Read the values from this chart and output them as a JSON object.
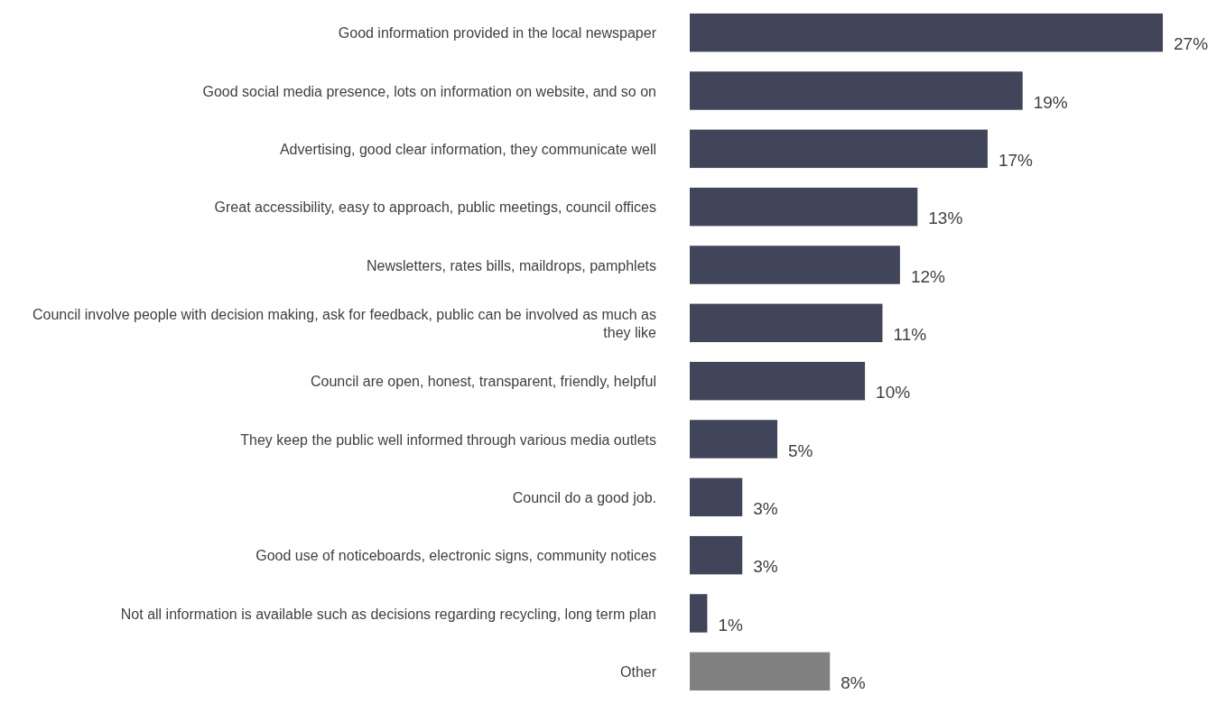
{
  "chart_data": {
    "type": "bar",
    "orientation": "horizontal",
    "relative": false,
    "categories": [
      "Good information provided in the local newspaper",
      "Good social media presence, lots on information on website, and so on",
      "Advertising, good clear information, they communicate well",
      "Great accessibility, easy to approach, public meetings, council offices",
      "Newsletters, rates bills, maildrops, pamphlets",
      "Council involve people with decision making, ask for feedback, public can be involved as much as they like",
      "Council are open, honest, transparent, friendly, helpful",
      "They keep the public well informed through various media outlets",
      "Council do a good job.",
      "Good use of noticeboards, electronic signs, community notices",
      "Not all information is available such as decisions regarding recycling, long term plan",
      "Other"
    ],
    "values": [
      27,
      19,
      17,
      13,
      12,
      11,
      10,
      5,
      3,
      3,
      1,
      8
    ],
    "value_labels": [
      "27%",
      "19%",
      "17%",
      "13%",
      "12%",
      "11%",
      "10%",
      "5%",
      "3%",
      "3%",
      "1%",
      "8%"
    ],
    "colors": [
      "#404559",
      "#404559",
      "#404559",
      "#404559",
      "#404559",
      "#404559",
      "#404559",
      "#404559",
      "#404559",
      "#404559",
      "#404559",
      "#808080"
    ]
  }
}
